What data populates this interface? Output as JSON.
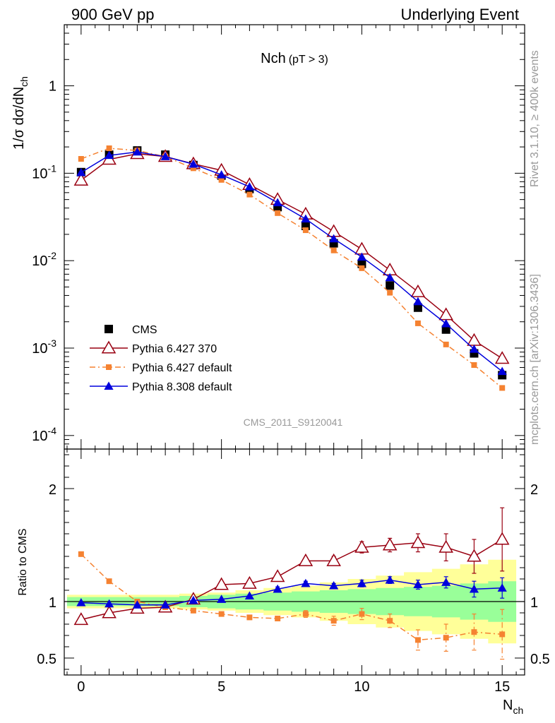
{
  "header": {
    "left": "900 GeV pp",
    "right": "Underlying Event"
  },
  "side_text": {
    "rivet": "Rivet 3.1.10, ≥ 400k events",
    "mcplots": "mcplots.cern.ch [arXiv:1306.3436]"
  },
  "colors": {
    "cms": "#000000",
    "pythia6_370": "#990011",
    "pythia6_default": "#f58231",
    "pythia8": "#0000dd",
    "band_inner": "#99ff99",
    "band_outer": "#ffff99",
    "watermark": "#999999"
  },
  "chart_data": [
    {
      "type": "scatter",
      "title": "Nch",
      "title_sub": "(pT >  3)",
      "ylabel": "1/σ dσ/dN",
      "ylabel_sub": "ch",
      "yscale": "log",
      "ylim": [
        7e-05,
        5
      ],
      "xlim": [
        -0.6,
        15.8
      ],
      "yticks": [
        {
          "value": 0.0001,
          "label": "10",
          "exp": "-4"
        },
        {
          "value": 0.001,
          "label": "10",
          "exp": "-3"
        },
        {
          "value": 0.01,
          "label": "10",
          "exp": "-2"
        },
        {
          "value": 0.1,
          "label": "10",
          "exp": "-1"
        },
        {
          "value": 1,
          "label": "1",
          "exp": ""
        }
      ],
      "watermark": "CMS_2011_S9120041",
      "legend_position": "lower-left",
      "x": [
        0,
        1,
        2,
        3,
        4,
        5,
        6,
        7,
        8,
        9,
        10,
        11,
        12,
        13,
        14,
        15
      ],
      "series": [
        {
          "name": "CMS",
          "key": "cms",
          "marker": "square",
          "line": "none",
          "values": [
            0.103,
            0.163,
            0.182,
            0.163,
            0.124,
            0.094,
            0.066,
            0.041,
            0.025,
            0.0158,
            0.0092,
            0.0052,
            0.0029,
            0.00163,
            0.00087,
            0.00049
          ]
        },
        {
          "name": "Pythia 6.427 370",
          "key": "pythia6_370",
          "marker": "open-triangle",
          "line": "solid",
          "values": [
            0.083,
            0.144,
            0.167,
            0.155,
            0.128,
            0.108,
            0.074,
            0.05,
            0.034,
            0.0215,
            0.0135,
            0.0078,
            0.0044,
            0.0024,
            0.00122,
            0.00076
          ]
        },
        {
          "name": "Pythia 6.427 default",
          "key": "pythia6_default",
          "marker": "small-square",
          "line": "dashdot",
          "values": [
            0.146,
            0.193,
            0.182,
            0.155,
            0.114,
            0.084,
            0.057,
            0.035,
            0.0223,
            0.0131,
            0.0082,
            0.0043,
            0.00192,
            0.0011,
            0.00064,
            0.00035
          ]
        },
        {
          "name": "Pythia 8.308 default",
          "key": "pythia8",
          "marker": "filled-triangle",
          "line": "solid",
          "values": [
            0.102,
            0.16,
            0.175,
            0.155,
            0.127,
            0.096,
            0.07,
            0.046,
            0.03,
            0.0178,
            0.011,
            0.0064,
            0.0034,
            0.0019,
            0.00097,
            0.00054
          ]
        }
      ]
    },
    {
      "type": "scatter",
      "ylabel": "Ratio to CMS",
      "xlabel": "N",
      "xlabel_sub": "ch",
      "ylim": [
        0.35,
        2.35
      ],
      "xlim": [
        -0.6,
        15.8
      ],
      "yticks": [
        0.5,
        1,
        2
      ],
      "xticks": [
        0,
        5,
        10,
        15
      ],
      "reference": 1,
      "x": [
        0,
        1,
        2,
        3,
        4,
        5,
        6,
        7,
        8,
        9,
        10,
        11,
        12,
        13,
        14,
        15
      ],
      "band_inner": [
        0.04,
        0.04,
        0.04,
        0.04,
        0.05,
        0.06,
        0.07,
        0.08,
        0.09,
        0.1,
        0.11,
        0.12,
        0.13,
        0.14,
        0.16,
        0.18
      ],
      "band_outer": [
        0.06,
        0.06,
        0.06,
        0.06,
        0.07,
        0.08,
        0.1,
        0.12,
        0.14,
        0.17,
        0.2,
        0.23,
        0.26,
        0.29,
        0.33,
        0.37
      ],
      "series": [
        {
          "key": "pythia6_370",
          "values": [
            0.84,
            0.9,
            0.94,
            0.95,
            1.02,
            1.15,
            1.16,
            1.22,
            1.36,
            1.36,
            1.48,
            1.5,
            1.52,
            1.48,
            1.4,
            1.55
          ],
          "errors": [
            0.01,
            0.01,
            0.01,
            0.01,
            0.01,
            0.02,
            0.02,
            0.02,
            0.03,
            0.04,
            0.05,
            0.06,
            0.08,
            0.12,
            0.15,
            0.28
          ]
        },
        {
          "key": "pythia6_default",
          "values": [
            1.42,
            1.18,
            1.0,
            0.95,
            0.92,
            0.89,
            0.86,
            0.85,
            0.89,
            0.83,
            0.89,
            0.83,
            0.66,
            0.68,
            0.73,
            0.71
          ],
          "errors": [
            0.01,
            0.01,
            0.01,
            0.01,
            0.01,
            0.01,
            0.02,
            0.02,
            0.03,
            0.04,
            0.05,
            0.06,
            0.09,
            0.12,
            0.16,
            0.22
          ]
        },
        {
          "key": "pythia8",
          "values": [
            0.99,
            0.98,
            0.97,
            0.97,
            1.01,
            1.02,
            1.05,
            1.11,
            1.16,
            1.14,
            1.16,
            1.19,
            1.15,
            1.17,
            1.11,
            1.12
          ],
          "errors": [
            0.01,
            0.01,
            0.01,
            0.01,
            0.01,
            0.01,
            0.01,
            0.02,
            0.02,
            0.02,
            0.03,
            0.03,
            0.04,
            0.05,
            0.07,
            0.09
          ]
        }
      ]
    }
  ]
}
